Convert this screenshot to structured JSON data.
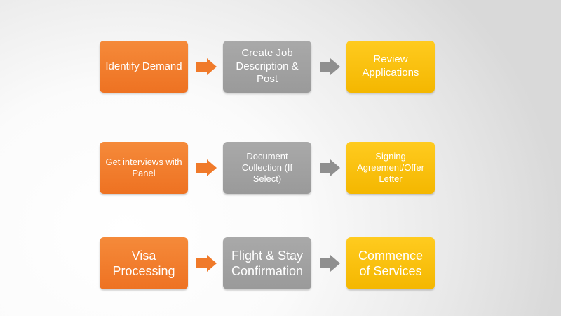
{
  "rows": [
    {
      "steps": [
        {
          "text": "Identify Demand",
          "color": "#ee7222"
        },
        {
          "text": "Create Job Description & Post",
          "color": "#9e9e9e"
        },
        {
          "text": "Review Applications",
          "color": "#f4b700"
        }
      ]
    },
    {
      "steps": [
        {
          "text": "Get interviews with Panel",
          "color": "#ee7222"
        },
        {
          "text": "Document Collection (If Select)",
          "color": "#9e9e9e"
        },
        {
          "text": "Signing Agreement/Offer Letter",
          "color": "#f4b700"
        }
      ]
    },
    {
      "steps": [
        {
          "text": "Visa Processing",
          "color": "#ee7222"
        },
        {
          "text": "Flight & Stay Confirmation",
          "color": "#9e9e9e"
        },
        {
          "text": "Commence of Services",
          "color": "#f4b700"
        }
      ]
    }
  ]
}
